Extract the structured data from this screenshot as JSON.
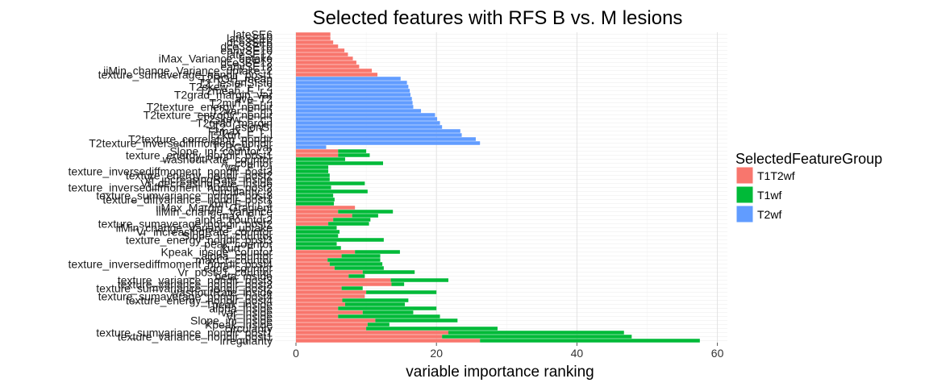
{
  "chart_data": {
    "type": "bar",
    "orientation": "horizontal",
    "stacked": true,
    "title": "Selected features with RFS B vs. M lesions",
    "xlabel": "variable importance ranking",
    "ylabel": "",
    "xlim": [
      -1,
      61
    ],
    "xticks": [
      0,
      20,
      40,
      60
    ],
    "grid": true,
    "legend": {
      "title": "SelectedFeatureGroup",
      "placement": "right",
      "entries": [
        {
          "name": "T1T2wf",
          "color": "#F8766D"
        },
        {
          "name": "T1wf",
          "color": "#00BA38"
        },
        {
          "name": "T2wf",
          "color": "#619CFF"
        }
      ]
    },
    "features": [
      {
        "label": "irregularity",
        "T1T2wf": 26.2,
        "T1wf": 31.3,
        "T2wf": 0
      },
      {
        "label": "texture_variance_nondir_post1",
        "T1T2wf": 20.8,
        "T1wf": 27.0,
        "T2wf": 0
      },
      {
        "label": "texture_sumvariance_nondir_post1",
        "T1T2wf": 21.7,
        "T1wf": 25.0,
        "T2wf": 0
      },
      {
        "label": "circularity",
        "T1T2wf": 10.0,
        "T1wf": 18.7,
        "T2wf": 0
      },
      {
        "label": "Kpeak_inside",
        "T1T2wf": 10.2,
        "T1wf": 3.1,
        "T2wf": 0
      },
      {
        "label": "Slope_ini_inside",
        "T1T2wf": 11.3,
        "T1wf": 11.7,
        "T2wf": 0
      },
      {
        "label": "Vr_inside",
        "T1T2wf": 6.0,
        "T1wf": 14.5,
        "T2wf": 0
      },
      {
        "label": "var_inside",
        "T1T2wf": 9.5,
        "T1wf": 7.2,
        "T2wf": 0
      },
      {
        "label": "alpha_inside",
        "T1T2wf": 6.0,
        "T1wf": 14.0,
        "T2wf": 0
      },
      {
        "label": "Tpeak_inside",
        "T1T2wf": 7.0,
        "T1wf": 8.5,
        "T2wf": 0
      },
      {
        "label": "texture_energy_nondir_post4",
        "T1T2wf": 6.6,
        "T1wf": 9.4,
        "T2wf": 0
      },
      {
        "label": "texture_sumaverage_nondir_post4",
        "T1T2wf": 9.8,
        "T1wf": 0.0,
        "T2wf": 0
      },
      {
        "label": "washoutRate_inside",
        "T1T2wf": 10.0,
        "T1wf": 10.0,
        "T2wf": 0
      },
      {
        "label": "texture_sumvariance_nondir_post2",
        "T1T2wf": 6.5,
        "T1wf": 3.0,
        "T2wf": 0
      },
      {
        "label": "texture_variance_nondir_post2",
        "T1T2wf": 13.6,
        "T1wf": 1.8,
        "T2wf": 0
      },
      {
        "label": "texture_variance_nondir_post3",
        "T1T2wf": 13.5,
        "T1wf": 8.2,
        "T2wf": 0
      },
      {
        "label": "beta_inside",
        "T1T2wf": 7.5,
        "T1wf": 2.3,
        "T2wf": 0
      },
      {
        "label": "Vr_post_1_countor",
        "T1T2wf": 9.5,
        "T1wf": 7.4,
        "T2wf": 0
      },
      {
        "label": "edge_countor",
        "T1T2wf": 5.5,
        "T1wf": 7.0,
        "T2wf": 0
      },
      {
        "label": "texture_inversediffmoment_nondir_post4",
        "T1T2wf": 4.8,
        "T1wf": 7.5,
        "T2wf": 0
      },
      {
        "label": "maxCr_countor",
        "T1T2wf": 4.5,
        "T1wf": 7.5,
        "T2wf": 0
      },
      {
        "label": "alpha_countor",
        "T1T2wf": 6.5,
        "T1wf": 5.5,
        "T2wf": 0
      },
      {
        "label": "Kpeak_inside_countor",
        "T1T2wf": 8.4,
        "T1wf": 6.4,
        "T2wf": 0
      },
      {
        "label": "kurt_F_r_i",
        "T1T2wf": 0,
        "T1wf": 6.4,
        "T2wf": 0
      },
      {
        "label": "peak_countor",
        "T1T2wf": 0,
        "T1wf": 5.8,
        "T2wf": 0
      },
      {
        "label": "texture_energy_nondir_post3",
        "T1T2wf": 0,
        "T1wf": 12.5,
        "T2wf": 0
      },
      {
        "label": "Slope_ini_countor",
        "T1T2wf": 0,
        "T1wf": 6.0,
        "T2wf": 0
      },
      {
        "label": "Vr_increasingRate_countor",
        "T1T2wf": 0,
        "T1wf": 6.2,
        "T2wf": 0
      },
      {
        "label": "iiMin_change_Variance_uptake",
        "T1T2wf": 0,
        "T1wf": 5.8,
        "T2wf": 0
      },
      {
        "label": "texture_sumaverage_nondir_post2",
        "T1T2wf": 4.6,
        "T1wf": 5.8,
        "T2wf": 0
      },
      {
        "label": "alpha_countor2",
        "T1T2wf": 5.3,
        "T1wf": 5.3,
        "T2wf": 0
      },
      {
        "label": "max_F_r_i",
        "T1T2wf": 8.0,
        "T1wf": 3.7,
        "T2wf": 0
      },
      {
        "label": "iiMin_change_Variance",
        "T1T2wf": 6.0,
        "T1wf": 7.8,
        "T2wf": 0
      },
      {
        "label": "iiMax_Margin_Gradient",
        "T1T2wf": 8.4,
        "T1wf": 0.0,
        "T2wf": 0
      },
      {
        "label": "kurt_F_r_i_2",
        "T1T2wf": 0,
        "T1wf": 5.4,
        "T2wf": 0
      },
      {
        "label": "texture_diffvariance_nondir_post1",
        "T1T2wf": 0,
        "T1wf": 5.5,
        "T2wf": 0
      },
      {
        "label": "texture_sumvariance_nondir_post3",
        "T1T2wf": 0,
        "T1wf": 5.3,
        "T2wf": 0
      },
      {
        "label": "circularity_2",
        "T1T2wf": 0,
        "T1wf": 10.2,
        "T2wf": 0
      },
      {
        "label": "texture_inversediffmoment_nondir_post2",
        "T1T2wf": 0,
        "T1wf": 5.0,
        "T2wf": 0
      },
      {
        "label": "Vr_decreasingRate_inside",
        "T1T2wf": 0,
        "T1wf": 9.8,
        "T2wf": 0
      },
      {
        "label": "Vr_increasingRate_inside",
        "T1T2wf": 0,
        "T1wf": 4.8,
        "T2wf": 0
      },
      {
        "label": "texture_energy_nondir_post2",
        "T1T2wf": 0,
        "T1wf": 4.8,
        "T2wf": 0
      },
      {
        "label": "texture_inversediffmoment_nondir_post3",
        "T1T2wf": 0,
        "T1wf": 4.6,
        "T2wf": 0
      },
      {
        "label": "var_F_r_i",
        "T1T2wf": 0,
        "T1wf": 4.6,
        "T2wf": 0
      },
      {
        "label": "A_countor",
        "T1T2wf": 0,
        "T1wf": 12.4,
        "T2wf": 0
      },
      {
        "label": "washoutRate_countor",
        "T1T2wf": 0,
        "T1wf": 7.0,
        "T2wf": 0
      },
      {
        "label": "texture_energy_nondir_post1",
        "T1T2wf": 6.0,
        "T1wf": 4.5,
        "T2wf": 0
      },
      {
        "label": "Slope_ini_countor_2",
        "T1T2wf": 6.0,
        "T1wf": 4.0,
        "T2wf": 0
      },
      {
        "label": "T2RGH_var",
        "T1T2wf": 0,
        "T1wf": 0,
        "T2wf": 4.3
      },
      {
        "label": "T2texture_inversediffmoment_nondir",
        "T1T2wf": 0,
        "T1wf": 0,
        "T2wf": 26.2
      },
      {
        "label": "T2texture_correlation_nondir",
        "T1T2wf": 0,
        "T1wf": 0,
        "T2wf": 25.6
      },
      {
        "label": "T2kurt_F_r_i",
        "T1T2wf": 0,
        "T1wf": 0,
        "T2wf": 23.6
      },
      {
        "label": "T2max_F_r_i",
        "T1T2wf": 0,
        "T1wf": 0,
        "T2wf": 23.4
      },
      {
        "label": "T2_lesionSI",
        "T1T2wf": 0,
        "T1wf": 0,
        "T2wf": 20.8
      },
      {
        "label": "T2grad_margin",
        "T1T2wf": 0,
        "T1wf": 0,
        "T2wf": 20.5
      },
      {
        "label": "T2skew_F_r_i",
        "T1T2wf": 0,
        "T1wf": 0,
        "T2wf": 20.1
      },
      {
        "label": "T2texture_entropy_nondir",
        "T1T2wf": 0,
        "T1wf": 0,
        "T2wf": 19.8
      },
      {
        "label": "T2var_F_r_i",
        "T1T2wf": 0,
        "T1wf": 0,
        "T2wf": 17.8
      },
      {
        "label": "T2texture_energy_nondir",
        "T1T2wf": 0,
        "T1wf": 0,
        "T2wf": 16.7
      },
      {
        "label": "T2min_F_r_i",
        "T1T2wf": 0,
        "T1wf": 0,
        "T2wf": 16.6
      },
      {
        "label": "ave_T2",
        "T1T2wf": 0,
        "T1wf": 0,
        "T2wf": 16.5
      },
      {
        "label": "T2grad_margin_var",
        "T1T2wf": 0,
        "T1wf": 0,
        "T2wf": 16.3
      },
      {
        "label": "T2mean_F_r_i",
        "T1T2wf": 0,
        "T1wf": 0,
        "T2wf": 16.2
      },
      {
        "label": "T2skew_F_r_i_2",
        "T1T2wf": 0,
        "T1wf": 0,
        "T2wf": 16.0
      },
      {
        "label": "T2_lesionSIstd",
        "T1T2wf": 0,
        "T1wf": 0,
        "T2wf": 15.8
      },
      {
        "label": "T2RGH_mean",
        "T1T2wf": 0,
        "T1wf": 0,
        "T2wf": 14.9
      },
      {
        "label": "texture_sumaverage_nondir_post1",
        "T1T2wf": 11.6,
        "T1wf": 0,
        "T2wf": 0
      },
      {
        "label": "iiMin_change_Variance_uptake_2",
        "T1T2wf": 10.8,
        "T1wf": 0,
        "T2wf": 0
      },
      {
        "label": "earlySE12",
        "T1T2wf": 9.0,
        "T1wf": 0,
        "T2wf": 0
      },
      {
        "label": "dce3SE12",
        "T1T2wf": 8.6,
        "T1wf": 0,
        "T2wf": 0
      },
      {
        "label": "iMax_Variance_uptake",
        "T1T2wf": 8.1,
        "T1wf": 0,
        "T2wf": 0
      },
      {
        "label": "lateSE12",
        "T1T2wf": 7.4,
        "T1wf": 0,
        "T2wf": 0
      },
      {
        "label": "earlySE10",
        "T1T2wf": 6.9,
        "T1wf": 0,
        "T2wf": 0
      },
      {
        "label": "dce3SE10",
        "T1T2wf": 6.0,
        "T1wf": 0,
        "T2wf": 0
      },
      {
        "label": "dce3SE6",
        "T1T2wf": 5.3,
        "T1wf": 0,
        "T2wf": 0
      },
      {
        "label": "lateSE10",
        "T1T2wf": 4.9,
        "T1wf": 0,
        "T2wf": 0
      },
      {
        "label": "lateSE6",
        "T1T2wf": 4.9,
        "T1wf": 0,
        "T2wf": 0
      }
    ]
  }
}
